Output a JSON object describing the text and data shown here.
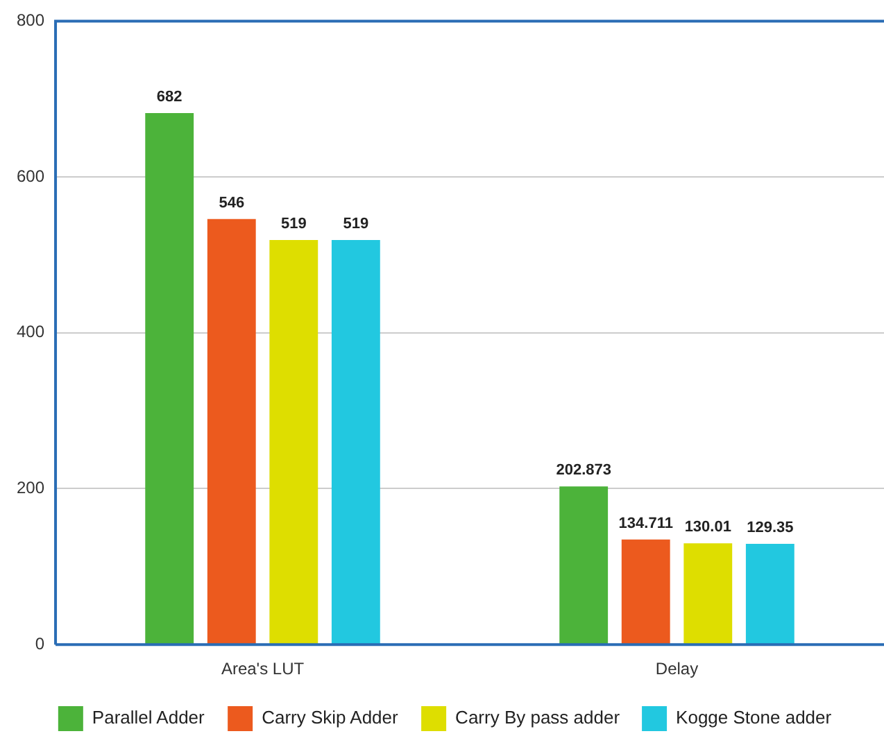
{
  "chart_data": {
    "type": "bar",
    "categories": [
      "Area's LUT",
      "Delay"
    ],
    "series": [
      {
        "name": "Parallel Adder",
        "color": "#4cb33a",
        "values": [
          682,
          202.873
        ]
      },
      {
        "name": "Carry Skip Adder",
        "color": "#ec5a1e",
        "values": [
          546,
          134.711
        ]
      },
      {
        "name": "Carry By pass adder",
        "color": "#dede00",
        "values": [
          519,
          130.01
        ]
      },
      {
        "name": "Kogge Stone adder",
        "color": "#22c8e0",
        "values": [
          519,
          129.35
        ]
      }
    ],
    "ylim": [
      0,
      800
    ],
    "yticks": [
      0,
      200,
      400,
      600,
      800
    ],
    "grid": "y",
    "legend": "bottom",
    "data_labels": true
  }
}
